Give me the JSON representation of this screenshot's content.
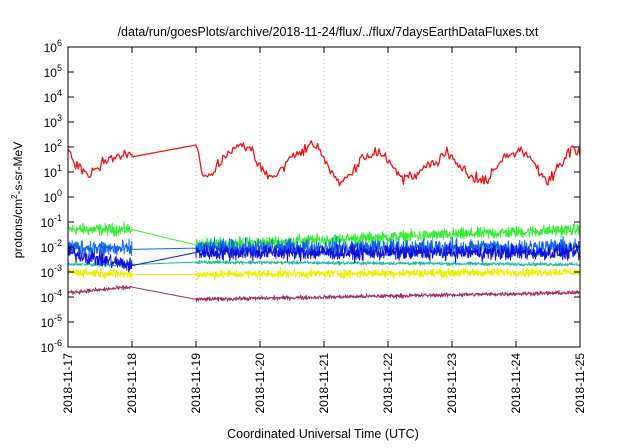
{
  "chart_data": {
    "type": "line",
    "title": "/data/run/goesPlots/archive/2018-11-24/flux/../flux/7daysEarthDataFluxes.txt",
    "xlabel": "Coordinated Universal Time (UTC)",
    "ylabel": {
      "prefix": "protons/cm",
      "sup": "2",
      "suffix": "-s-sr-MeV"
    },
    "yscale": "log",
    "ylim_exp": [
      -6,
      6
    ],
    "xlim": [
      "2018-11-17",
      "2018-11-25"
    ],
    "x_ticks": [
      "2018-11-17",
      "2018-11-18",
      "2018-11-19",
      "2018-11-20",
      "2018-11-21",
      "2018-11-22",
      "2018-11-23",
      "2018-11-24",
      "2018-11-25"
    ],
    "y_ticks": [
      {
        "base": "10",
        "exp": "-6"
      },
      {
        "base": "10",
        "exp": "-5"
      },
      {
        "base": "10",
        "exp": "-4"
      },
      {
        "base": "10",
        "exp": "-3"
      },
      {
        "base": "10",
        "exp": "-2"
      },
      {
        "base": "10",
        "exp": "-1"
      },
      {
        "base": "10",
        "exp": "0"
      },
      {
        "base": "10",
        "exp": "1"
      },
      {
        "base": "10",
        "exp": "2"
      },
      {
        "base": "10",
        "exp": "3"
      },
      {
        "base": "10",
        "exp": "4"
      },
      {
        "base": "10",
        "exp": "5"
      },
      {
        "base": "10",
        "exp": "6"
      }
    ],
    "grid": "x-only, dotted",
    "data_gap": [
      "2018-11-18",
      "2018-11-19"
    ],
    "series": [
      {
        "color": "#ee1111",
        "x": [
          17.0,
          17.15,
          17.3,
          17.5,
          17.7,
          17.85,
          18.0,
          19.0,
          19.08,
          19.15,
          19.3,
          19.5,
          19.7,
          19.85,
          20.0,
          20.15,
          20.3,
          20.5,
          20.7,
          20.82,
          20.95,
          21.1,
          21.25,
          21.45,
          21.6,
          21.75,
          21.95,
          22.1,
          22.25,
          22.45,
          22.6,
          22.8,
          22.95,
          23.1,
          23.3,
          23.5,
          23.7,
          23.85,
          24.0,
          24.2,
          24.3,
          24.5,
          24.7,
          24.85,
          25.0
        ],
        "y": [
          60,
          20,
          8,
          20,
          45,
          55,
          40,
          120,
          15,
          6,
          12,
          60,
          120,
          80,
          20,
          5,
          10,
          40,
          80,
          150,
          60,
          10,
          4,
          10,
          35,
          60,
          45,
          15,
          6,
          8,
          15,
          35,
          60,
          20,
          7,
          4,
          15,
          45,
          70,
          50,
          20,
          4,
          20,
          70,
          60
        ]
      },
      {
        "color": "#33ee33",
        "x": [
          17.0,
          18.0,
          19.0,
          25.0
        ],
        "y": [
          0.05,
          0.05,
          0.012,
          0.05
        ]
      },
      {
        "color": "#1166ee",
        "x": [
          17.0,
          18.0,
          19.0,
          25.0
        ],
        "y": [
          0.01,
          0.008,
          0.009,
          0.01
        ]
      },
      {
        "color": "#1111dd",
        "x": [
          17.0,
          18.0,
          19.0,
          25.0
        ],
        "y": [
          0.006,
          0.0018,
          0.006,
          0.006
        ]
      },
      {
        "color": "#22bb99",
        "x": [
          17.0,
          18.0,
          19.0,
          25.0
        ],
        "y": [
          0.002,
          0.002,
          0.0025,
          0.002
        ]
      },
      {
        "color": "#eeee00",
        "x": [
          17.0,
          18.0,
          19.0,
          25.0
        ],
        "y": [
          0.001,
          0.0008,
          0.0008,
          0.001
        ]
      },
      {
        "color": "#993366",
        "x": [
          17.0,
          18.0,
          19.0,
          25.0
        ],
        "y": [
          0.00015,
          0.00025,
          8e-05,
          0.00015
        ]
      }
    ]
  }
}
